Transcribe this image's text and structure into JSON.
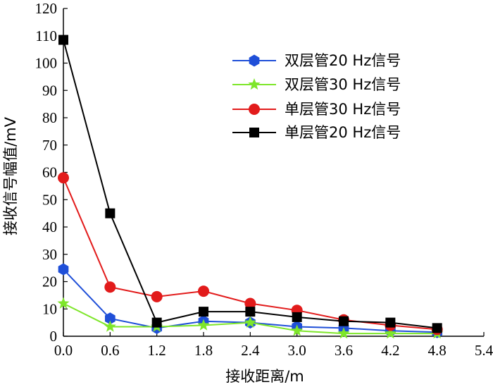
{
  "chart_data": {
    "type": "line",
    "title": "",
    "xlabel": "接收距离/m",
    "ylabel": "接收信号幅值/mV",
    "xlim": [
      0,
      5.4
    ],
    "ylim": [
      0,
      120
    ],
    "x_ticks": [
      "0.0",
      "0.6",
      "1.2",
      "1.8",
      "2.4",
      "3.0",
      "3.6",
      "4.2",
      "4.8",
      "5.4"
    ],
    "y_ticks": [
      "0",
      "10",
      "20",
      "30",
      "40",
      "50",
      "60",
      "70",
      "80",
      "90",
      "100",
      "110",
      "120"
    ],
    "grid": false,
    "legend_position": "top-right",
    "x": [
      0.0,
      0.6,
      1.2,
      1.8,
      2.4,
      3.0,
      3.6,
      4.2,
      4.8
    ],
    "series": [
      {
        "name": "双层管20 Hz信号",
        "color": "#1f4fd8",
        "marker": "hexagon",
        "values": [
          24.5,
          6.5,
          3.0,
          5.5,
          5.0,
          3.5,
          3.0,
          2.0,
          1.5
        ]
      },
      {
        "name": "双层管30 Hz信号",
        "color": "#7ee62a",
        "marker": "star",
        "values": [
          12.0,
          3.5,
          3.5,
          4.0,
          5.0,
          2.0,
          1.0,
          1.0,
          1.0
        ]
      },
      {
        "name": "单层管30 Hz信号",
        "color": "#e21b1b",
        "marker": "circle",
        "values": [
          58.0,
          18.0,
          14.5,
          16.5,
          12.0,
          9.5,
          6.0,
          4.0,
          2.5
        ]
      },
      {
        "name": "单层管20 Hz信号",
        "color": "#000000",
        "marker": "square",
        "values": [
          108.5,
          45.0,
          5.0,
          9.0,
          9.0,
          7.0,
          5.5,
          5.0,
          3.0
        ]
      }
    ]
  }
}
